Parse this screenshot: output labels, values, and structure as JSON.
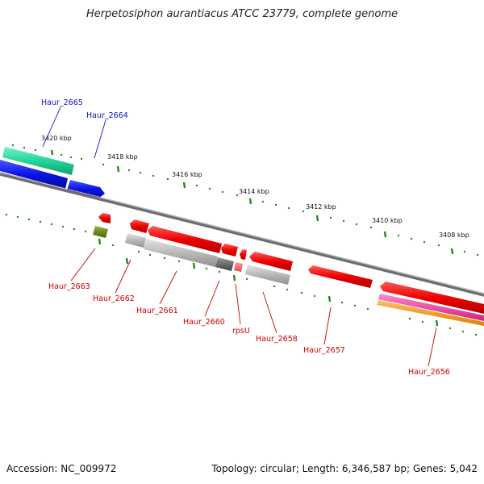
{
  "title": "Herpetosiphon aurantiacus ATCC 23779, complete genome",
  "footer": {
    "accession": "Accession: NC_009972",
    "topology": "Topology: circular; Length: 6,346,587 bp; Genes: 5,042"
  },
  "ticks": [
    "3420 kbp",
    "3418 kbp",
    "3416 kbp",
    "3414 kbp",
    "3412 kbp",
    "3410 kbp",
    "3408 kbp"
  ],
  "genes_top": [
    "Haur_2665",
    "Haur_2664"
  ],
  "genes_bottom": [
    "Haur_2663",
    "Haur_2662",
    "Haur_2661",
    "Haur_2660",
    "rpsU",
    "Haur_2658",
    "Haur_2657",
    "Haur_2656"
  ],
  "colors": {
    "forward_label": "#1010c0",
    "reverse_label": "#cc0000",
    "cds_red": "#ee0000",
    "cds_blue": "#0a14e6",
    "teal": "#22d69a",
    "olive": "#6b8a1e",
    "gray": "#b8b8b8",
    "dark_gray": "#6c6c6c",
    "pink": "#e83a9a",
    "orange": "#f29a10",
    "tick_green": "#1f8a1f"
  }
}
